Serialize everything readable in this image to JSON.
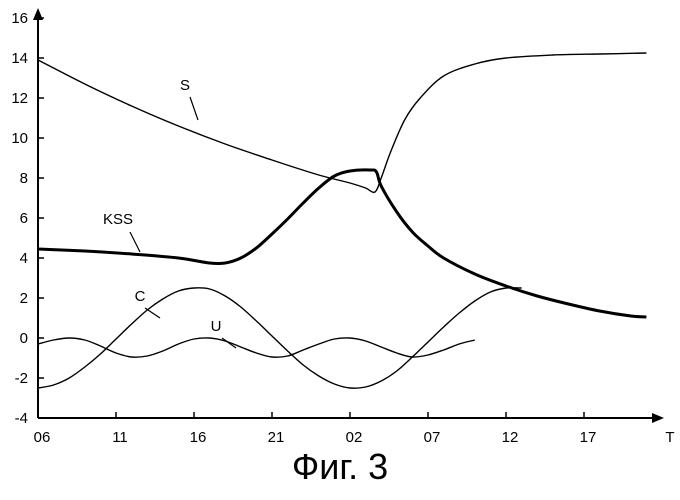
{
  "chart_data": {
    "type": "line",
    "caption": "Фиг. 3",
    "xlabel": "T",
    "ylabel": "",
    "x_ticks": [
      "06",
      "11",
      "16",
      "21",
      "02",
      "07",
      "12",
      "17"
    ],
    "y_ticks": [
      16,
      14,
      12,
      10,
      8,
      6,
      4,
      2,
      0,
      -2,
      -4
    ],
    "ylim": [
      -4,
      16
    ],
    "xlim": [
      0,
      39.3
    ],
    "grid": false,
    "series": [
      {
        "name": "S",
        "stroke": "thin",
        "points": [
          [
            0,
            13.9
          ],
          [
            3,
            12.7
          ],
          [
            6,
            11.6
          ],
          [
            9,
            10.6
          ],
          [
            12,
            9.7
          ],
          [
            15,
            8.9
          ],
          [
            18,
            8.15
          ],
          [
            20,
            7.75
          ],
          [
            21,
            7.5
          ],
          [
            21.6,
            7.3
          ],
          [
            22,
            8.0
          ],
          [
            22.6,
            9.3
          ],
          [
            23.5,
            10.9
          ],
          [
            24.5,
            12.0
          ],
          [
            26,
            13.1
          ],
          [
            28,
            13.7
          ],
          [
            30,
            14.0
          ],
          [
            33,
            14.15
          ],
          [
            36,
            14.2
          ],
          [
            39,
            14.25
          ]
        ]
      },
      {
        "name": "KSS",
        "stroke": "bold",
        "points": [
          [
            0,
            4.45
          ],
          [
            3,
            4.35
          ],
          [
            6,
            4.2
          ],
          [
            9,
            4.0
          ],
          [
            11,
            3.75
          ],
          [
            12,
            3.75
          ],
          [
            13,
            4.0
          ],
          [
            14,
            4.5
          ],
          [
            15,
            5.2
          ],
          [
            16,
            5.95
          ],
          [
            17,
            6.75
          ],
          [
            18,
            7.5
          ],
          [
            19,
            8.1
          ],
          [
            20,
            8.35
          ],
          [
            21.3,
            8.4
          ],
          [
            21.7,
            8.3
          ],
          [
            22,
            7.6
          ],
          [
            23,
            6.3
          ],
          [
            24,
            5.3
          ],
          [
            25,
            4.6
          ],
          [
            26,
            4.0
          ],
          [
            28,
            3.2
          ],
          [
            30,
            2.6
          ],
          [
            32,
            2.1
          ],
          [
            34,
            1.7
          ],
          [
            36,
            1.35
          ],
          [
            38,
            1.1
          ],
          [
            39,
            1.05
          ]
        ]
      },
      {
        "name": "C",
        "stroke": "thin",
        "points": [
          [
            0,
            -2.5
          ],
          [
            1,
            -2.35
          ],
          [
            2,
            -2.0
          ],
          [
            3,
            -1.45
          ],
          [
            4,
            -0.8
          ],
          [
            5,
            -0.05
          ],
          [
            6,
            0.7
          ],
          [
            7,
            1.4
          ],
          [
            8,
            1.95
          ],
          [
            9,
            2.35
          ],
          [
            10,
            2.5
          ],
          [
            11,
            2.45
          ],
          [
            12,
            2.1
          ],
          [
            13,
            1.55
          ],
          [
            14,
            0.85
          ],
          [
            15,
            0.1
          ],
          [
            16,
            -0.65
          ],
          [
            17,
            -1.35
          ],
          [
            18,
            -1.9
          ],
          [
            19,
            -2.3
          ],
          [
            20,
            -2.5
          ],
          [
            21,
            -2.45
          ],
          [
            22,
            -2.15
          ],
          [
            23,
            -1.65
          ],
          [
            24,
            -0.95
          ],
          [
            25,
            -0.2
          ],
          [
            26,
            0.55
          ],
          [
            27,
            1.25
          ],
          [
            28,
            1.85
          ],
          [
            29,
            2.3
          ],
          [
            30,
            2.5
          ],
          [
            31,
            2.5
          ]
        ]
      },
      {
        "name": "U",
        "stroke": "thin",
        "points": [
          [
            0,
            -0.3
          ],
          [
            1,
            -0.1
          ],
          [
            2,
            0.0
          ],
          [
            3,
            -0.1
          ],
          [
            4,
            -0.4
          ],
          [
            5,
            -0.75
          ],
          [
            6,
            -0.95
          ],
          [
            7,
            -0.9
          ],
          [
            8,
            -0.65
          ],
          [
            9,
            -0.3
          ],
          [
            10,
            -0.05
          ],
          [
            11,
            0.0
          ],
          [
            12,
            -0.15
          ],
          [
            13,
            -0.45
          ],
          [
            14,
            -0.75
          ],
          [
            15,
            -0.95
          ],
          [
            16,
            -0.9
          ],
          [
            17,
            -0.6
          ],
          [
            18,
            -0.3
          ],
          [
            19,
            -0.05
          ],
          [
            20,
            0.0
          ],
          [
            21,
            -0.15
          ],
          [
            22,
            -0.45
          ],
          [
            23,
            -0.75
          ],
          [
            24,
            -0.95
          ],
          [
            25,
            -0.85
          ],
          [
            26,
            -0.6
          ],
          [
            27,
            -0.3
          ],
          [
            28,
            -0.1
          ]
        ]
      }
    ]
  }
}
